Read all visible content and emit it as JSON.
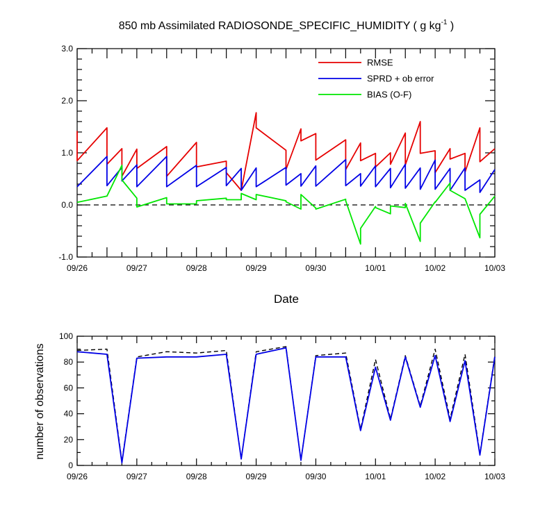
{
  "chart_data": [
    {
      "type": "line",
      "title_main": "850 mb Assimilated RADIOSONDE_SPECIFIC_HUMIDITY ( g kg",
      "title_sup": "-1",
      "title_end": " )",
      "xlabel": "Date",
      "ylabel": "",
      "xlim": [
        0,
        7
      ],
      "ylim": [
        -1.0,
        3.0
      ],
      "x_ticks": [
        {
          "x": 0,
          "label": "09/26"
        },
        {
          "x": 1,
          "label": "09/27"
        },
        {
          "x": 2,
          "label": "09/28"
        },
        {
          "x": 3,
          "label": "09/29"
        },
        {
          "x": 4,
          "label": "09/30"
        },
        {
          "x": 5,
          "label": "10/01"
        },
        {
          "x": 6,
          "label": "10/02"
        },
        {
          "x": 7,
          "label": "10/03"
        }
      ],
      "y_ticks": [
        {
          "y": -1.0,
          "label": "-1.0"
        },
        {
          "y": 0.0,
          "label": "0.0"
        },
        {
          "y": 1.0,
          "label": "1.0"
        },
        {
          "y": 2.0,
          "label": "2.0"
        },
        {
          "y": 3.0,
          "label": "3.0"
        }
      ],
      "legend_position": "top-right",
      "series": [
        {
          "name": "RMSE",
          "color": "#e60000",
          "x": [
            0,
            0,
            0.5,
            0.5,
            0.75,
            0.75,
            1.0,
            1.0,
            1.5,
            1.5,
            2.0,
            2.0,
            2.5,
            2.5,
            2.75,
            2.75,
            3.0,
            3.0,
            3.5,
            3.5,
            3.75,
            3.75,
            4.0,
            4.0,
            4.5,
            4.5,
            4.75,
            4.75,
            5.0,
            5.0,
            5.25,
            5.25,
            5.5,
            5.5,
            5.75,
            5.75,
            6.0,
            6.0,
            6.25,
            6.25,
            6.5,
            6.5,
            6.75,
            6.75,
            7.0
          ],
          "y": [
            1.42,
            0.85,
            1.48,
            0.78,
            1.08,
            0.55,
            1.07,
            0.7,
            1.12,
            0.55,
            1.2,
            0.73,
            0.84,
            0.62,
            0.28,
            0.28,
            1.77,
            1.48,
            1.05,
            0.68,
            1.46,
            1.23,
            1.37,
            0.86,
            1.25,
            0.68,
            1.19,
            0.85,
            0.99,
            0.73,
            1.0,
            0.78,
            1.38,
            0.77,
            1.6,
            0.99,
            1.04,
            0.62,
            1.08,
            0.88,
            0.99,
            0.63,
            1.48,
            0.83,
            1.08
          ]
        },
        {
          "name": "SPRD + ob error",
          "color": "#0000e6",
          "x": [
            0,
            0.5,
            0.5,
            0.75,
            0.75,
            1.0,
            1.0,
            1.5,
            1.5,
            2.0,
            2.0,
            2.5,
            2.5,
            2.75,
            2.75,
            3.0,
            3.0,
            3.5,
            3.5,
            3.75,
            3.75,
            4.0,
            4.0,
            4.5,
            4.5,
            4.75,
            4.75,
            5.0,
            5.0,
            5.25,
            5.25,
            5.5,
            5.5,
            5.75,
            5.75,
            6.0,
            6.0,
            6.25,
            6.25,
            6.5,
            6.5,
            6.75,
            6.75,
            7.0
          ],
          "y": [
            0.35,
            0.93,
            0.37,
            0.72,
            0.46,
            0.77,
            0.35,
            0.93,
            0.35,
            0.76,
            0.35,
            0.72,
            0.37,
            0.7,
            0.28,
            0.71,
            0.35,
            0.72,
            0.38,
            0.6,
            0.36,
            0.75,
            0.36,
            0.87,
            0.37,
            0.6,
            0.36,
            0.75,
            0.35,
            0.7,
            0.33,
            0.78,
            0.32,
            0.71,
            0.3,
            0.86,
            0.3,
            0.7,
            0.28,
            0.71,
            0.28,
            0.48,
            0.24,
            0.68
          ]
        },
        {
          "name": "BIAS (O-F)",
          "color": "#00e600",
          "x": [
            0,
            0.5,
            0.75,
            0.75,
            1.0,
            1.0,
            1.5,
            1.5,
            2.0,
            2.0,
            2.5,
            2.5,
            2.75,
            2.75,
            3.0,
            3.0,
            3.5,
            3.5,
            3.75,
            3.75,
            4.0,
            4.0,
            4.5,
            4.5,
            4.75,
            4.75,
            5.0,
            5.0,
            5.25,
            5.25,
            5.5,
            5.5,
            5.75,
            5.75,
            6.0,
            6.0,
            6.25,
            6.25,
            6.5,
            6.5,
            6.75,
            6.75,
            7.0
          ],
          "y": [
            0.05,
            0.17,
            0.76,
            0.48,
            0.13,
            -0.04,
            0.14,
            0.02,
            0.02,
            0.08,
            0.13,
            0.1,
            0.1,
            0.22,
            0.1,
            0.2,
            0.08,
            0.06,
            -0.08,
            0.2,
            -0.06,
            -0.08,
            0.11,
            0.08,
            -0.75,
            -0.45,
            -0.03,
            -0.05,
            -0.17,
            -0.02,
            -0.05,
            0.03,
            -0.7,
            -0.35,
            0.06,
            0.05,
            0.42,
            0.28,
            0.12,
            0.12,
            -0.63,
            -0.18,
            0.17
          ]
        }
      ],
      "reference_line": {
        "y": 0.0,
        "style": "dashed"
      }
    },
    {
      "type": "line",
      "title": "",
      "xlabel": "",
      "ylabel": "number of observations",
      "xlim": [
        0,
        7
      ],
      "ylim": [
        0,
        100
      ],
      "x_ticks": [
        {
          "x": 0,
          "label": "09/26"
        },
        {
          "x": 1,
          "label": "09/27"
        },
        {
          "x": 2,
          "label": "09/28"
        },
        {
          "x": 3,
          "label": "09/29"
        },
        {
          "x": 4,
          "label": "09/30"
        },
        {
          "x": 5,
          "label": "10/01"
        },
        {
          "x": 6,
          "label": "10/02"
        },
        {
          "x": 7,
          "label": "10/03"
        }
      ],
      "y_ticks": [
        {
          "y": 0,
          "label": "0"
        },
        {
          "y": 20,
          "label": "20"
        },
        {
          "y": 40,
          "label": "40"
        },
        {
          "y": 60,
          "label": "60"
        },
        {
          "y": 80,
          "label": "80"
        },
        {
          "y": 100,
          "label": "100"
        }
      ],
      "series": [
        {
          "color": "#000000",
          "style": "dashed",
          "x": [
            0,
            0.5,
            0.75,
            1.0,
            1.5,
            2.0,
            2.5,
            2.75,
            3.0,
            3.5,
            3.75,
            4.0,
            4.5,
            4.75,
            5.0,
            5.25,
            5.5,
            5.75,
            6.0,
            6.25,
            6.5,
            6.75,
            7.0
          ],
          "y": [
            89,
            90,
            3,
            84,
            88,
            87,
            89,
            5,
            88,
            92,
            4,
            85,
            87,
            28,
            82,
            36,
            85,
            46,
            90,
            36,
            86,
            9,
            85
          ]
        },
        {
          "color": "#0000e6",
          "style": "solid",
          "x": [
            0,
            0.5,
            0.75,
            1.0,
            1.5,
            2.0,
            2.5,
            2.75,
            3.0,
            3.5,
            3.75,
            4.0,
            4.5,
            4.75,
            5.0,
            5.25,
            5.5,
            5.75,
            6.0,
            6.25,
            6.5,
            6.75,
            7.0
          ],
          "y": [
            88,
            86,
            2,
            83,
            84,
            84,
            86,
            5,
            86,
            91,
            4,
            84,
            84,
            27,
            76,
            35,
            84,
            45,
            85,
            34,
            81,
            8,
            84
          ]
        }
      ]
    }
  ]
}
